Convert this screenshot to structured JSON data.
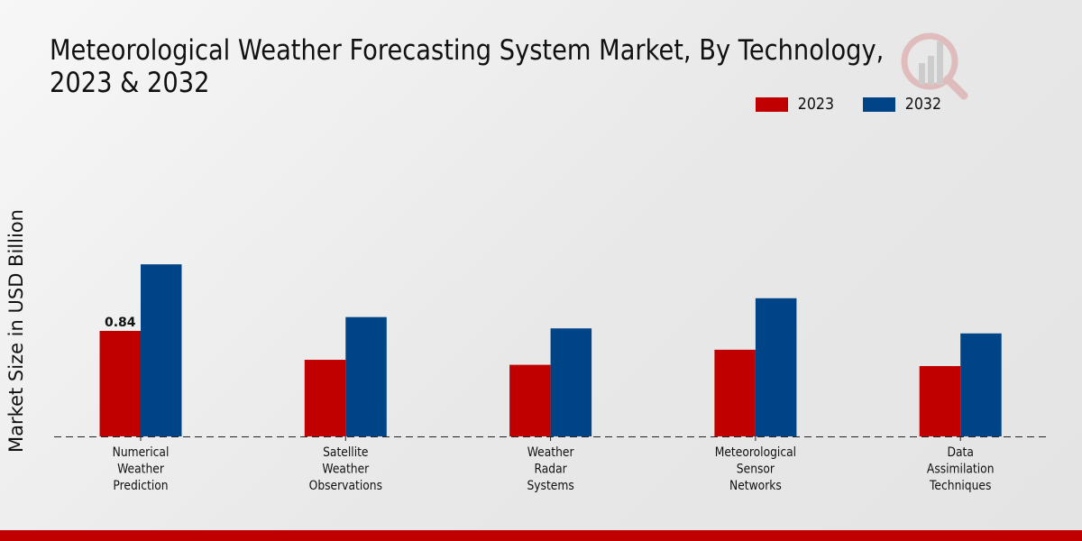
{
  "chart_data": {
    "type": "bar",
    "title": "Meteorological Weather Forecasting System Market, By Technology, 2023 & 2032",
    "xlabel": "",
    "ylabel": "Market Size in USD Billion",
    "ylim": [
      0,
      1.6
    ],
    "grid": false,
    "legend_position": "top-right",
    "categories": [
      "Numerical Weather Prediction",
      "Satellite Weather Observations",
      "Weather Radar Systems",
      "Meteorological Sensor Networks",
      "Data Assimilation Techniques"
    ],
    "category_lines": [
      [
        "Numerical",
        "Weather",
        "Prediction"
      ],
      [
        "Satellite",
        "Weather",
        "Observations"
      ],
      [
        "Weather",
        "Radar",
        "Systems"
      ],
      [
        "Meteorological",
        "Sensor",
        "Networks"
      ],
      [
        "Data",
        "Assimilation",
        "Techniques"
      ]
    ],
    "series": [
      {
        "name": "2023",
        "color": "#c00000",
        "values": [
          0.84,
          0.61,
          0.57,
          0.69,
          0.56
        ]
      },
      {
        "name": "2032",
        "color": "#004488",
        "values": [
          1.37,
          0.95,
          0.86,
          1.1,
          0.82
        ]
      }
    ],
    "annotations": [
      {
        "series": "2023",
        "category": "Numerical Weather Prediction",
        "text": "0.84"
      }
    ]
  },
  "colors": {
    "bottom_band": "#c00000"
  }
}
